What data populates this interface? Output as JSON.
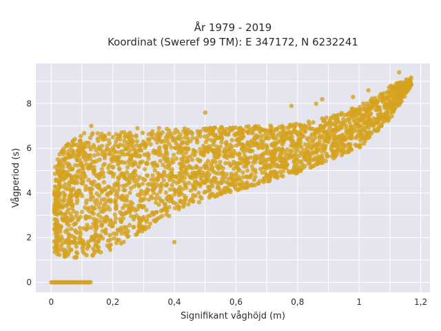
{
  "chart_data": {
    "type": "scatter",
    "title_line1": "År 1979 - 2019",
    "title_line2": "Koordinat (Sweref 99 TM): E 347172, N 6232241",
    "xlabel": "Signifikant våghöjd (m)",
    "ylabel": "Vågperiod (s)",
    "xlim": [
      -0.05,
      1.23
    ],
    "ylim": [
      -0.45,
      9.8
    ],
    "x_ticks": [
      0,
      0.2,
      0.4,
      0.6,
      0.8,
      1,
      1.2
    ],
    "x_tick_labels": [
      "0",
      "0,2",
      "0,4",
      "0,6",
      "0,8",
      "1",
      "1,2"
    ],
    "y_ticks": [
      0,
      2,
      4,
      6,
      8
    ],
    "y_tick_labels": [
      "0",
      "2",
      "4",
      "6",
      "8"
    ],
    "grid": true,
    "point_color": "#D4A21E",
    "background_color": "#E5E5EF",
    "upper_envelope": [
      [
        0.01,
        5.3
      ],
      [
        0.05,
        6.3
      ],
      [
        0.1,
        6.7
      ],
      [
        0.2,
        6.7
      ],
      [
        0.3,
        6.8
      ],
      [
        0.4,
        6.9
      ],
      [
        0.5,
        6.9
      ],
      [
        0.6,
        7.0
      ],
      [
        0.7,
        7.0
      ],
      [
        0.8,
        7.1
      ],
      [
        0.9,
        7.4
      ],
      [
        1.0,
        7.9
      ],
      [
        1.05,
        8.3
      ],
      [
        1.1,
        8.8
      ],
      [
        1.17,
        9.2
      ]
    ],
    "lower_envelope": [
      [
        0.01,
        1.3
      ],
      [
        0.05,
        1.1
      ],
      [
        0.1,
        1.1
      ],
      [
        0.15,
        1.2
      ],
      [
        0.2,
        1.5
      ],
      [
        0.3,
        2.3
      ],
      [
        0.4,
        3.1
      ],
      [
        0.5,
        3.7
      ],
      [
        0.6,
        4.1
      ],
      [
        0.7,
        4.5
      ],
      [
        0.8,
        4.9
      ],
      [
        0.9,
        5.4
      ],
      [
        1.0,
        6.0
      ],
      [
        1.1,
        7.3
      ],
      [
        1.17,
        8.8
      ]
    ],
    "zero_band": {
      "x": [
        0.0,
        0.13
      ],
      "y": 0
    },
    "outliers": [
      [
        0.5,
        7.6
      ],
      [
        0.78,
        7.9
      ],
      [
        0.86,
        8.0
      ],
      [
        0.88,
        8.2
      ],
      [
        0.98,
        8.3
      ],
      [
        1.03,
        8.6
      ],
      [
        1.13,
        9.4
      ],
      [
        0.13,
        7.0
      ],
      [
        0.28,
        6.9
      ],
      [
        0.35,
        6.9
      ],
      [
        0.22,
        1.9
      ],
      [
        0.4,
        1.8
      ]
    ]
  }
}
